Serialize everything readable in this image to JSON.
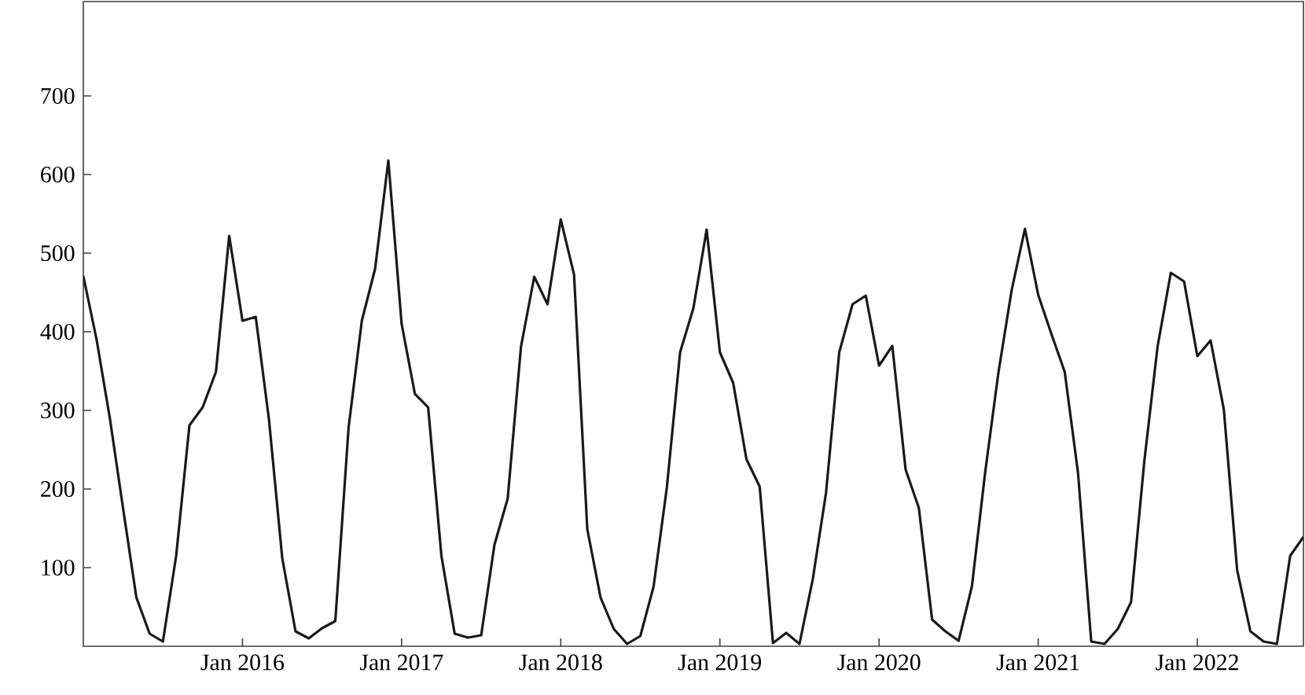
{
  "chart_data": {
    "type": "line",
    "x": [
      "2015-01",
      "2015-02",
      "2015-03",
      "2015-04",
      "2015-05",
      "2015-06",
      "2015-07",
      "2015-08",
      "2015-09",
      "2015-10",
      "2015-11",
      "2015-12",
      "2016-01",
      "2016-02",
      "2016-03",
      "2016-04",
      "2016-05",
      "2016-06",
      "2016-07",
      "2016-08",
      "2016-09",
      "2016-10",
      "2016-11",
      "2016-12",
      "2017-01",
      "2017-02",
      "2017-03",
      "2017-04",
      "2017-05",
      "2017-06",
      "2017-07",
      "2017-08",
      "2017-09",
      "2017-10",
      "2017-11",
      "2017-12",
      "2018-01",
      "2018-02",
      "2018-03",
      "2018-04",
      "2018-05",
      "2018-06",
      "2018-07",
      "2018-08",
      "2018-09",
      "2018-10",
      "2018-11",
      "2018-12",
      "2019-01",
      "2019-02",
      "2019-03",
      "2019-04",
      "2019-05",
      "2019-06",
      "2019-07",
      "2019-08",
      "2019-09",
      "2019-10",
      "2019-11",
      "2019-12",
      "2020-01",
      "2020-02",
      "2020-03",
      "2020-04",
      "2020-05",
      "2020-06",
      "2020-07",
      "2020-08",
      "2020-09",
      "2020-10",
      "2020-11",
      "2020-12",
      "2021-01",
      "2021-02",
      "2021-03",
      "2021-04",
      "2021-05",
      "2021-06",
      "2021-07",
      "2021-08",
      "2021-09",
      "2021-10",
      "2021-11",
      "2021-12",
      "2022-01",
      "2022-02",
      "2022-03",
      "2022-04",
      "2022-05",
      "2022-06",
      "2022-07",
      "2022-08",
      "2022-09"
    ],
    "series": [
      {
        "color": "#1a1a1a",
        "values": [
          471,
          390,
          290,
          175,
          62,
          16,
          6,
          115,
          281,
          304,
          349,
          522,
          414,
          419,
          288,
          112,
          19,
          10,
          23,
          32,
          278,
          414,
          480,
          618,
          410,
          321,
          304,
          115,
          16,
          11,
          14,
          129,
          188,
          381,
          470,
          435,
          543,
          473,
          149,
          62,
          22,
          3,
          13,
          76,
          202,
          374,
          430,
          530,
          374,
          335,
          238,
          203,
          4,
          17,
          3,
          85,
          195,
          374,
          435,
          446,
          357,
          382,
          225,
          176,
          34,
          19,
          7,
          76,
          221,
          348,
          453,
          531,
          447,
          397,
          349,
          221,
          6,
          3,
          22,
          56,
          235,
          381,
          475,
          464,
          369,
          389,
          301,
          97,
          19,
          6,
          3,
          115,
          139
        ]
      }
    ],
    "xlim": [
      "2015-01",
      "2022-09"
    ],
    "xticks": [
      {
        "value": "2016-01",
        "label": "Jan 2016"
      },
      {
        "value": "2017-01",
        "label": "Jan 2017"
      },
      {
        "value": "2018-01",
        "label": "Jan 2018"
      },
      {
        "value": "2019-01",
        "label": "Jan 2019"
      },
      {
        "value": "2020-01",
        "label": "Jan 2020"
      },
      {
        "value": "2021-01",
        "label": "Jan 2021"
      },
      {
        "value": "2022-01",
        "label": "Jan 2022"
      }
    ],
    "ylim": [
      0,
      820
    ],
    "yticks": [
      100,
      200,
      300,
      400,
      500,
      600,
      700
    ],
    "grid": false,
    "marker": "none",
    "line_style": "solid"
  }
}
